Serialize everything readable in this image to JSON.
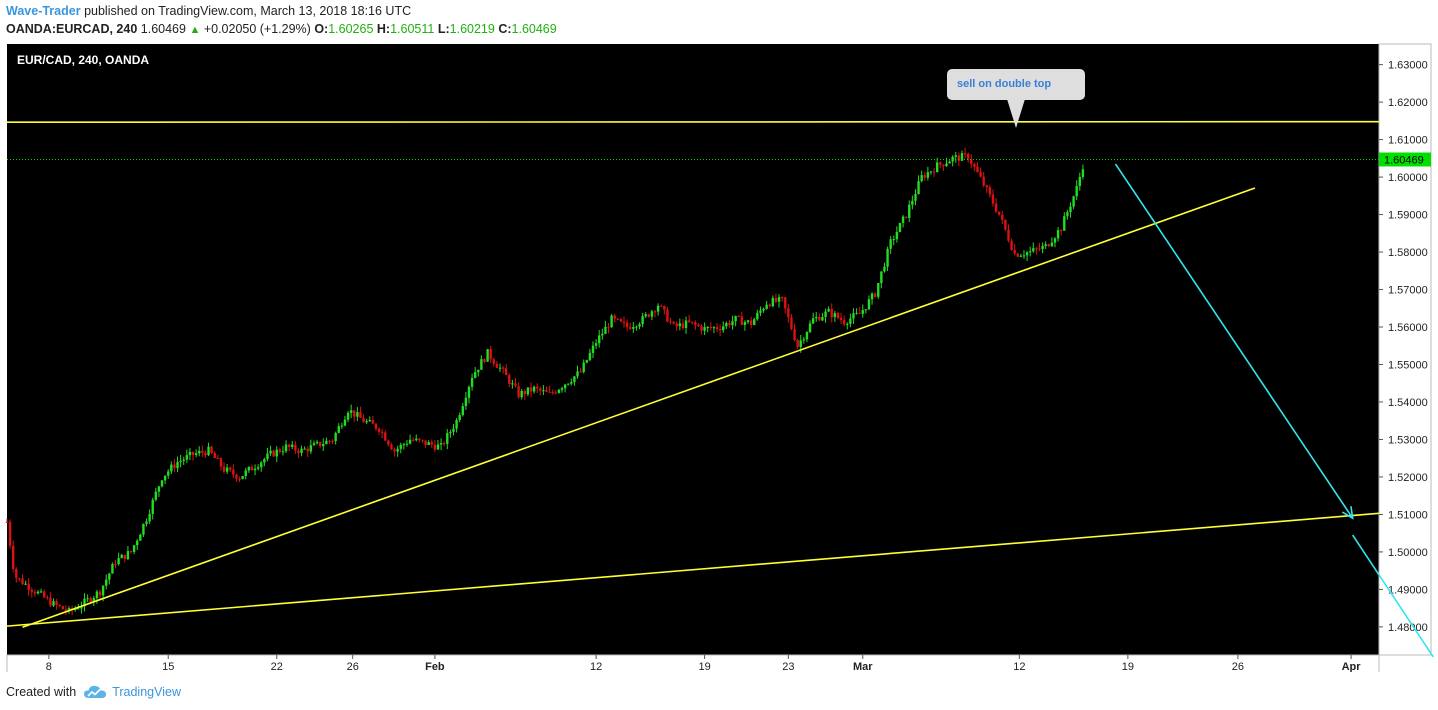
{
  "header": {
    "author": "Wave-Trader",
    "published_text": "published on TradingView.com, March 13, 2018 18:16 UTC",
    "symbol": "OANDA:EURCAD, 240",
    "last": "1.60469",
    "change": "+0.02050 (+1.29%)",
    "o_label": "O:",
    "o": "1.60265",
    "h_label": "H:",
    "h": "1.60511",
    "l_label": "L:",
    "l": "1.60219",
    "c_label": "C:",
    "c": "1.60469"
  },
  "footer": {
    "created_with": "Created with",
    "brand": "TradingView",
    "logo_icon": "tradingview-cloud-icon"
  },
  "colors": {
    "bg": "#000000",
    "up": "#22dd22",
    "down": "#dd1111",
    "trendline": "#ffff33",
    "arrow": "#33e6f0",
    "price_label": "#00e000"
  },
  "chart_data": {
    "type": "candlestick",
    "title": "EUR/CAD, 240, OANDA",
    "ylim": [
      1.4725,
      1.6355
    ],
    "y_ticks": [
      "1.63000",
      "1.62000",
      "1.61000",
      "1.60000",
      "1.59000",
      "1.58000",
      "1.57000",
      "1.56000",
      "1.55000",
      "1.54000",
      "1.53000",
      "1.52000",
      "1.51000",
      "1.50000",
      "1.49000",
      "1.48000"
    ],
    "x_ticks": [
      "8",
      "15",
      "22",
      "26",
      "Feb",
      "12",
      "19",
      "23",
      "Mar",
      "12",
      "19",
      "26",
      "Apr"
    ],
    "x_domain": [
      -2,
      86.5
    ],
    "x_tick_positions": [
      0.7,
      8.4,
      15.4,
      20.3,
      25.6,
      36.0,
      43.0,
      48.4,
      53.2,
      63.3,
      70.3,
      77.4,
      84.7
    ],
    "current_price": 1.60469,
    "current_price_label": "1.60469",
    "price_path": [
      [
        -2,
        1.508
      ],
      [
        -1.5,
        1.4935
      ],
      [
        0,
        1.489
      ],
      [
        1,
        1.486
      ],
      [
        2,
        1.484
      ],
      [
        3,
        1.4865
      ],
      [
        4,
        1.4895
      ],
      [
        5,
        1.4975
      ],
      [
        6,
        1.5
      ],
      [
        7,
        1.509
      ],
      [
        8,
        1.52
      ],
      [
        9,
        1.524
      ],
      [
        10,
        1.526
      ],
      [
        11,
        1.527
      ],
      [
        12,
        1.522
      ],
      [
        13,
        1.52
      ],
      [
        14,
        1.523
      ],
      [
        15,
        1.526
      ],
      [
        16,
        1.528
      ],
      [
        17,
        1.527
      ],
      [
        18,
        1.5285
      ],
      [
        19,
        1.53
      ],
      [
        20,
        1.538
      ],
      [
        21,
        1.535
      ],
      [
        22,
        1.533
      ],
      [
        23,
        1.527
      ],
      [
        24,
        1.53
      ],
      [
        25,
        1.529
      ],
      [
        26,
        1.528
      ],
      [
        27,
        1.535
      ],
      [
        28,
        1.547
      ],
      [
        29,
        1.553
      ],
      [
        30,
        1.548
      ],
      [
        31,
        1.542
      ],
      [
        32,
        1.5435
      ],
      [
        33,
        1.542
      ],
      [
        34,
        1.545
      ],
      [
        35,
        1.548
      ],
      [
        36,
        1.556
      ],
      [
        37,
        1.562
      ],
      [
        38,
        1.56
      ],
      [
        39,
        1.562
      ],
      [
        40,
        1.566
      ],
      [
        41,
        1.56
      ],
      [
        42,
        1.561
      ],
      [
        43,
        1.5595
      ],
      [
        44,
        1.56
      ],
      [
        45,
        1.562
      ],
      [
        46,
        1.561
      ],
      [
        47,
        1.5665
      ],
      [
        48,
        1.567
      ],
      [
        49,
        1.555
      ],
      [
        50,
        1.562
      ],
      [
        51,
        1.564
      ],
      [
        52,
        1.5615
      ],
      [
        53,
        1.5635
      ],
      [
        54,
        1.569
      ],
      [
        55,
        1.5825
      ],
      [
        56,
        1.59
      ],
      [
        57,
        1.6
      ],
      [
        58,
        1.603
      ],
      [
        59,
        1.605
      ],
      [
        60,
        1.6055
      ],
      [
        61,
        1.598
      ],
      [
        62,
        1.59
      ],
      [
        63,
        1.5795
      ],
      [
        64,
        1.58
      ],
      [
        65,
        1.5815
      ],
      [
        66,
        1.5865
      ],
      [
        67,
        1.597
      ],
      [
        67.5,
        1.60469
      ]
    ],
    "annotation": "sell on double top",
    "trendlines": [
      {
        "name": "resistance",
        "start": [
          -2,
          1.61464
        ],
        "end": [
          86.5,
          1.61478
        ]
      },
      {
        "name": "support-1",
        "start": [
          -1,
          1.4799
        ],
        "end": [
          78.5,
          1.5971
        ]
      },
      {
        "name": "support-2",
        "start": [
          -2,
          1.4802
        ],
        "end": [
          86.5,
          1.5103
        ]
      }
    ],
    "arrows": [
      {
        "start": [
          69.5,
          1.6035
        ],
        "end": [
          84.8,
          1.509
        ]
      },
      {
        "start": [
          84.8,
          1.5045
        ],
        "end": [
          90.0,
          1.472
        ]
      }
    ]
  }
}
